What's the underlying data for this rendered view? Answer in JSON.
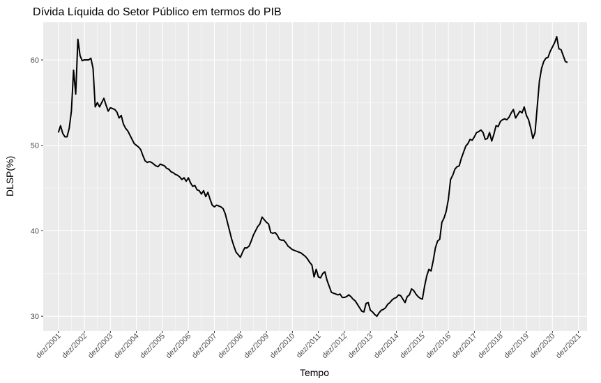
{
  "chart_data": {
    "type": "line",
    "title": "Dívida Líquida do Setor Público em termos do PIB",
    "x_label": "Tempo",
    "y_label": "DLSP(%)",
    "grid": true,
    "color": "#000000",
    "xlim": [
      "2001-05",
      "2022-04"
    ],
    "ylim": [
      28.3,
      64.4
    ],
    "yticks": [
      30,
      40,
      50,
      60
    ],
    "xticks": [
      {
        "value": "2001-12",
        "label": "dez/2001"
      },
      {
        "value": "2002-12",
        "label": "dez/2002"
      },
      {
        "value": "2003-12",
        "label": "dez/2003"
      },
      {
        "value": "2004-12",
        "label": "dez/2004"
      },
      {
        "value": "2005-12",
        "label": "dez/2005"
      },
      {
        "value": "2006-12",
        "label": "dez/2006"
      },
      {
        "value": "2007-12",
        "label": "dez/2007"
      },
      {
        "value": "2008-12",
        "label": "dez/2008"
      },
      {
        "value": "2009-12",
        "label": "dez/2009"
      },
      {
        "value": "2010-12",
        "label": "dez/2010"
      },
      {
        "value": "2011-12",
        "label": "dez/2011"
      },
      {
        "value": "2012-12",
        "label": "dez/2012"
      },
      {
        "value": "2013-12",
        "label": "dez/2013"
      },
      {
        "value": "2014-12",
        "label": "dez/2014"
      },
      {
        "value": "2015-12",
        "label": "dez/2015"
      },
      {
        "value": "2016-12",
        "label": "dez/2016"
      },
      {
        "value": "2017-12",
        "label": "dez/2017"
      },
      {
        "value": "2018-12",
        "label": "dez/2018"
      },
      {
        "value": "2019-12",
        "label": "dez/2019"
      },
      {
        "value": "2020-12",
        "label": "dez/2020"
      },
      {
        "value": "2021-12",
        "label": "dez/2021"
      }
    ],
    "x": [
      "2001-12",
      "2002-01",
      "2002-02",
      "2002-03",
      "2002-04",
      "2002-05",
      "2002-06",
      "2002-07",
      "2002-08",
      "2002-09",
      "2002-10",
      "2002-11",
      "2002-12",
      "2003-01",
      "2003-02",
      "2003-03",
      "2003-04",
      "2003-05",
      "2003-06",
      "2003-07",
      "2003-08",
      "2003-09",
      "2003-10",
      "2003-11",
      "2003-12",
      "2004-01",
      "2004-02",
      "2004-03",
      "2004-04",
      "2004-05",
      "2004-06",
      "2004-07",
      "2004-08",
      "2004-09",
      "2004-10",
      "2004-11",
      "2004-12",
      "2005-01",
      "2005-02",
      "2005-03",
      "2005-04",
      "2005-05",
      "2005-06",
      "2005-07",
      "2005-08",
      "2005-09",
      "2005-10",
      "2005-11",
      "2005-12",
      "2006-01",
      "2006-02",
      "2006-03",
      "2006-04",
      "2006-05",
      "2006-06",
      "2006-07",
      "2006-08",
      "2006-09",
      "2006-10",
      "2006-11",
      "2006-12",
      "2007-01",
      "2007-02",
      "2007-03",
      "2007-04",
      "2007-05",
      "2007-06",
      "2007-07",
      "2007-08",
      "2007-09",
      "2007-10",
      "2007-11",
      "2007-12",
      "2008-01",
      "2008-02",
      "2008-03",
      "2008-04",
      "2008-05",
      "2008-06",
      "2008-07",
      "2008-08",
      "2008-09",
      "2008-10",
      "2008-11",
      "2008-12",
      "2009-01",
      "2009-02",
      "2009-03",
      "2009-04",
      "2009-05",
      "2009-06",
      "2009-07",
      "2009-08",
      "2009-09",
      "2009-10",
      "2009-11",
      "2009-12",
      "2010-01",
      "2010-02",
      "2010-03",
      "2010-04",
      "2010-05",
      "2010-06",
      "2010-07",
      "2010-08",
      "2010-09",
      "2010-10",
      "2010-11",
      "2010-12",
      "2011-01",
      "2011-02",
      "2011-03",
      "2011-04",
      "2011-05",
      "2011-06",
      "2011-07",
      "2011-08",
      "2011-09",
      "2011-10",
      "2011-11",
      "2011-12",
      "2012-01",
      "2012-02",
      "2012-03",
      "2012-04",
      "2012-05",
      "2012-06",
      "2012-07",
      "2012-08",
      "2012-09",
      "2012-10",
      "2012-11",
      "2012-12",
      "2013-01",
      "2013-02",
      "2013-03",
      "2013-04",
      "2013-05",
      "2013-06",
      "2013-07",
      "2013-08",
      "2013-09",
      "2013-10",
      "2013-11",
      "2013-12",
      "2014-01",
      "2014-02",
      "2014-03",
      "2014-04",
      "2014-05",
      "2014-06",
      "2014-07",
      "2014-08",
      "2014-09",
      "2014-10",
      "2014-11",
      "2014-12",
      "2015-01",
      "2015-02",
      "2015-03",
      "2015-04",
      "2015-05",
      "2015-06",
      "2015-07",
      "2015-08",
      "2015-09",
      "2015-10",
      "2015-11",
      "2015-12",
      "2016-01",
      "2016-02",
      "2016-03",
      "2016-04",
      "2016-05",
      "2016-06",
      "2016-07",
      "2016-08",
      "2016-09",
      "2016-10",
      "2016-11",
      "2016-12",
      "2017-01",
      "2017-02",
      "2017-03",
      "2017-04",
      "2017-05",
      "2017-06",
      "2017-07",
      "2017-08",
      "2017-09",
      "2017-10",
      "2017-11",
      "2017-12",
      "2018-01",
      "2018-02",
      "2018-03",
      "2018-04",
      "2018-05",
      "2018-06",
      "2018-07",
      "2018-08",
      "2018-09",
      "2018-10",
      "2018-11",
      "2018-12",
      "2019-01",
      "2019-02",
      "2019-03",
      "2019-04",
      "2019-05",
      "2019-06",
      "2019-07",
      "2019-08",
      "2019-09",
      "2019-10",
      "2019-11",
      "2019-12",
      "2020-01",
      "2020-02",
      "2020-03",
      "2020-04",
      "2020-05",
      "2020-06",
      "2020-07",
      "2020-08",
      "2020-09",
      "2020-10",
      "2020-11",
      "2020-12",
      "2021-01",
      "2021-02",
      "2021-03",
      "2021-04",
      "2021-05",
      "2021-06",
      "2021-07"
    ],
    "values": [
      51.5,
      52.3,
      51.4,
      51.0,
      51.0,
      52.0,
      54.0,
      58.8,
      56.0,
      62.4,
      60.5,
      59.9,
      60.0,
      60.0,
      60.0,
      60.2,
      59.0,
      54.5,
      55.0,
      54.5,
      55.0,
      55.5,
      54.7,
      54.0,
      54.4,
      54.3,
      54.2,
      53.9,
      53.2,
      53.5,
      52.5,
      52.0,
      51.7,
      51.2,
      50.7,
      50.2,
      50.0,
      49.8,
      49.5,
      48.8,
      48.2,
      48.0,
      48.1,
      48.0,
      47.8,
      47.6,
      47.5,
      47.8,
      47.7,
      47.6,
      47.3,
      47.2,
      46.9,
      46.8,
      46.6,
      46.5,
      46.3,
      46.0,
      46.2,
      45.8,
      46.2,
      45.6,
      45.2,
      45.3,
      44.8,
      44.7,
      44.3,
      44.7,
      44.0,
      44.5,
      43.7,
      43.0,
      42.8,
      43.0,
      42.9,
      42.8,
      42.6,
      42.0,
      41.0,
      40.0,
      39.0,
      38.2,
      37.5,
      37.2,
      36.9,
      37.5,
      38.0,
      38.0,
      38.2,
      38.8,
      39.5,
      40.0,
      40.5,
      40.8,
      41.6,
      41.3,
      41.0,
      40.8,
      39.8,
      39.7,
      39.8,
      39.5,
      39.0,
      38.9,
      38.9,
      38.6,
      38.2,
      38.0,
      37.8,
      37.7,
      37.6,
      37.5,
      37.4,
      37.2,
      37.0,
      36.7,
      36.3,
      36.0,
      34.6,
      35.5,
      34.6,
      34.5,
      35.0,
      35.2,
      34.2,
      33.5,
      32.8,
      32.7,
      32.6,
      32.5,
      32.6,
      32.2,
      32.2,
      32.3,
      32.5,
      32.3,
      32.0,
      31.8,
      31.4,
      31.0,
      30.6,
      30.5,
      31.5,
      31.6,
      30.7,
      30.5,
      30.2,
      30.0,
      30.4,
      30.7,
      30.8,
      31.0,
      31.4,
      31.6,
      31.9,
      32.1,
      32.2,
      32.5,
      32.4,
      32.0,
      31.6,
      32.3,
      32.5,
      33.2,
      33.0,
      32.6,
      32.3,
      32.1,
      32.0,
      33.5,
      34.7,
      35.5,
      35.3,
      36.5,
      38.0,
      38.8,
      39.0,
      41.0,
      41.5,
      42.3,
      43.7,
      46.0,
      46.5,
      47.2,
      47.5,
      47.6,
      48.5,
      49.2,
      49.9,
      50.2,
      50.7,
      50.6,
      51.0,
      51.5,
      51.6,
      51.8,
      51.5,
      50.7,
      50.8,
      51.5,
      50.5,
      51.3,
      52.3,
      52.2,
      52.8,
      53.0,
      53.1,
      53.0,
      53.3,
      53.8,
      54.2,
      53.2,
      53.6,
      54.0,
      53.8,
      54.5,
      53.5,
      53.0,
      52.0,
      50.8,
      51.5,
      54.5,
      57.5,
      59.0,
      59.8,
      60.2,
      60.3,
      61.0,
      61.5,
      62.0,
      62.7,
      61.3,
      61.2,
      60.5,
      59.8,
      59.7
    ]
  }
}
